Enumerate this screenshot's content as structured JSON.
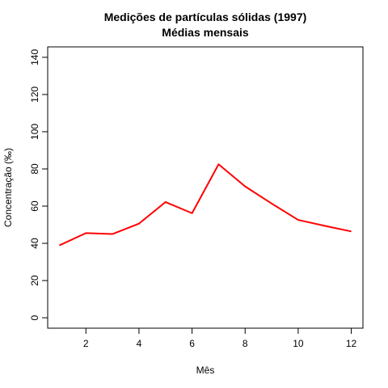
{
  "chart_data": {
    "type": "line",
    "title": "Medições de partículas sólidas (1997)",
    "subtitle": "Médias mensais",
    "xlabel": "Mês",
    "ylabel": "Concentração (‰)",
    "xlim": [
      0.56,
      12.44
    ],
    "ylim": [
      -5.6,
      145.6
    ],
    "x_ticks": [
      2,
      4,
      6,
      8,
      10,
      12
    ],
    "y_ticks": [
      0,
      20,
      40,
      60,
      80,
      100,
      120,
      140
    ],
    "grid": false,
    "series": [
      {
        "color": "#ff0000",
        "x": [
          1,
          2,
          3,
          4,
          5,
          6,
          7,
          8,
          9,
          10,
          11,
          12
        ],
        "values": [
          38.9,
          45.5,
          45.0,
          50.6,
          62.2,
          56.2,
          82.5,
          70.6,
          61.4,
          52.6,
          49.4,
          46.4
        ]
      }
    ]
  }
}
